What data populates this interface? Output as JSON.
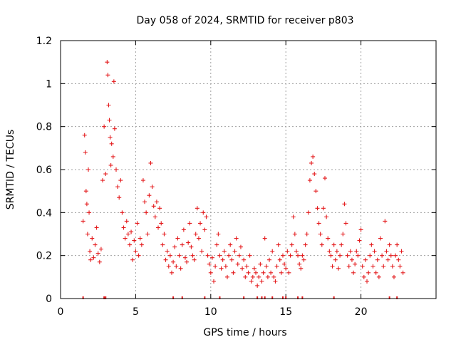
{
  "chart_data": {
    "type": "scatter",
    "title": "Day 058 of 2024, SRMTID for receiver p803",
    "xlabel": "GPS time / hours",
    "ylabel": "SRMTID / TECUs",
    "xlim": [
      0,
      25
    ],
    "ylim": [
      0,
      1.2
    ],
    "x_ticks": [
      0,
      5,
      10,
      15,
      20
    ],
    "y_ticks": [
      0,
      0.2,
      0.4,
      0.6,
      0.8,
      1,
      1.2
    ],
    "x_tick_labels": [
      "0",
      "5",
      "10",
      "15",
      "20"
    ],
    "y_tick_labels": [
      "0",
      "0.2",
      "0.4",
      "0.6",
      "0.8",
      "1",
      "1.2"
    ],
    "grid": true,
    "marker": "+",
    "color": "#e41a1c",
    "zero_marks_x": [
      1.5,
      2.9,
      3.0,
      7.5,
      8.1,
      9.6,
      10.6,
      12.2,
      13.1,
      13.4,
      13.6,
      14.1,
      14.8,
      15.0,
      15.8,
      16.1,
      18.2,
      21.9,
      22.4
    ],
    "series": [
      {
        "name": "SRMTID",
        "points": [
          [
            1.5,
            0.36
          ],
          [
            1.6,
            0.76
          ],
          [
            1.65,
            0.68
          ],
          [
            1.7,
            0.5
          ],
          [
            1.75,
            0.44
          ],
          [
            1.8,
            0.3
          ],
          [
            1.85,
            0.6
          ],
          [
            1.9,
            0.4
          ],
          [
            1.95,
            0.22
          ],
          [
            2.0,
            0.18
          ],
          [
            2.1,
            0.28
          ],
          [
            2.2,
            0.19
          ],
          [
            2.3,
            0.25
          ],
          [
            2.4,
            0.33
          ],
          [
            2.5,
            0.21
          ],
          [
            2.6,
            0.17
          ],
          [
            2.7,
            0.23
          ],
          [
            2.8,
            0.55
          ],
          [
            2.9,
            0.8
          ],
          [
            3.0,
            0.58
          ],
          [
            3.1,
            1.1
          ],
          [
            3.15,
            1.04
          ],
          [
            3.2,
            0.9
          ],
          [
            3.25,
            0.83
          ],
          [
            3.3,
            0.75
          ],
          [
            3.35,
            0.62
          ],
          [
            3.4,
            0.72
          ],
          [
            3.5,
            0.66
          ],
          [
            3.55,
            1.01
          ],
          [
            3.6,
            0.79
          ],
          [
            3.7,
            0.6
          ],
          [
            3.8,
            0.52
          ],
          [
            3.9,
            0.47
          ],
          [
            4.0,
            0.55
          ],
          [
            4.1,
            0.4
          ],
          [
            4.2,
            0.33
          ],
          [
            4.3,
            0.28
          ],
          [
            4.4,
            0.36
          ],
          [
            4.5,
            0.3
          ],
          [
            4.6,
            0.25
          ],
          [
            4.7,
            0.31
          ],
          [
            4.8,
            0.18
          ],
          [
            4.9,
            0.27
          ],
          [
            5.0,
            0.22
          ],
          [
            5.1,
            0.35
          ],
          [
            5.2,
            0.2
          ],
          [
            5.3,
            0.28
          ],
          [
            5.4,
            0.25
          ],
          [
            5.5,
            0.55
          ],
          [
            5.6,
            0.45
          ],
          [
            5.7,
            0.4
          ],
          [
            5.8,
            0.3
          ],
          [
            5.9,
            0.48
          ],
          [
            6.0,
            0.63
          ],
          [
            6.1,
            0.52
          ],
          [
            6.2,
            0.43
          ],
          [
            6.3,
            0.38
          ],
          [
            6.4,
            0.45
          ],
          [
            6.5,
            0.33
          ],
          [
            6.6,
            0.42
          ],
          [
            6.7,
            0.35
          ],
          [
            6.8,
            0.25
          ],
          [
            6.9,
            0.3
          ],
          [
            7.0,
            0.18
          ],
          [
            7.1,
            0.22
          ],
          [
            7.2,
            0.15
          ],
          [
            7.3,
            0.2
          ],
          [
            7.4,
            0.12
          ],
          [
            7.5,
            0.17
          ],
          [
            7.6,
            0.24
          ],
          [
            7.7,
            0.15
          ],
          [
            7.8,
            0.28
          ],
          [
            7.9,
            0.2
          ],
          [
            8.0,
            0.14
          ],
          [
            8.1,
            0.25
          ],
          [
            8.2,
            0.32
          ],
          [
            8.3,
            0.19
          ],
          [
            8.4,
            0.17
          ],
          [
            8.5,
            0.26
          ],
          [
            8.6,
            0.35
          ],
          [
            8.7,
            0.24
          ],
          [
            8.8,
            0.2
          ],
          [
            8.9,
            0.18
          ],
          [
            9.0,
            0.3
          ],
          [
            9.1,
            0.42
          ],
          [
            9.2,
            0.28
          ],
          [
            9.3,
            0.35
          ],
          [
            9.4,
            0.22
          ],
          [
            9.5,
            0.4
          ],
          [
            9.6,
            0.32
          ],
          [
            9.7,
            0.38
          ],
          [
            9.8,
            0.2
          ],
          [
            9.9,
            0.16
          ],
          [
            10.0,
            0.12
          ],
          [
            10.1,
            0.19
          ],
          [
            10.2,
            0.08
          ],
          [
            10.3,
            0.15
          ],
          [
            10.4,
            0.25
          ],
          [
            10.5,
            0.3
          ],
          [
            10.6,
            0.2
          ],
          [
            10.7,
            0.14
          ],
          [
            10.8,
            0.18
          ],
          [
            10.9,
            0.22
          ],
          [
            11.0,
            0.15
          ],
          [
            11.1,
            0.1
          ],
          [
            11.2,
            0.2
          ],
          [
            11.3,
            0.25
          ],
          [
            11.4,
            0.18
          ],
          [
            11.5,
            0.12
          ],
          [
            11.6,
            0.22
          ],
          [
            11.7,
            0.28
          ],
          [
            11.8,
            0.16
          ],
          [
            11.9,
            0.2
          ],
          [
            12.0,
            0.24
          ],
          [
            12.1,
            0.14
          ],
          [
            12.2,
            0.18
          ],
          [
            12.3,
            0.1
          ],
          [
            12.4,
            0.15
          ],
          [
            12.5,
            0.12
          ],
          [
            12.6,
            0.2
          ],
          [
            12.7,
            0.08
          ],
          [
            12.8,
            0.1
          ],
          [
            12.9,
            0.14
          ],
          [
            13.0,
            0.12
          ],
          [
            13.1,
            0.06
          ],
          [
            13.2,
            0.1
          ],
          [
            13.3,
            0.16
          ],
          [
            13.4,
            0.08
          ],
          [
            13.5,
            0.12
          ],
          [
            13.6,
            0.28
          ],
          [
            13.7,
            0.15
          ],
          [
            13.8,
            0.1
          ],
          [
            13.9,
            0.18
          ],
          [
            14.0,
            0.12
          ],
          [
            14.1,
            0.22
          ],
          [
            14.2,
            0.1
          ],
          [
            14.3,
            0.08
          ],
          [
            14.4,
            0.15
          ],
          [
            14.5,
            0.25
          ],
          [
            14.6,
            0.18
          ],
          [
            14.7,
            0.12
          ],
          [
            14.8,
            0.2
          ],
          [
            14.9,
            0.16
          ],
          [
            15.0,
            0.14
          ],
          [
            15.1,
            0.22
          ],
          [
            15.2,
            0.12
          ],
          [
            15.3,
            0.2
          ],
          [
            15.4,
            0.25
          ],
          [
            15.5,
            0.38
          ],
          [
            15.6,
            0.3
          ],
          [
            15.7,
            0.22
          ],
          [
            15.8,
            0.2
          ],
          [
            15.9,
            0.16
          ],
          [
            16.0,
            0.14
          ],
          [
            16.1,
            0.2
          ],
          [
            16.2,
            0.18
          ],
          [
            16.3,
            0.25
          ],
          [
            16.4,
            0.3
          ],
          [
            16.5,
            0.4
          ],
          [
            16.6,
            0.55
          ],
          [
            16.7,
            0.63
          ],
          [
            16.8,
            0.66
          ],
          [
            16.9,
            0.58
          ],
          [
            17.0,
            0.5
          ],
          [
            17.1,
            0.42
          ],
          [
            17.2,
            0.35
          ],
          [
            17.3,
            0.3
          ],
          [
            17.4,
            0.25
          ],
          [
            17.5,
            0.42
          ],
          [
            17.6,
            0.56
          ],
          [
            17.7,
            0.38
          ],
          [
            17.8,
            0.28
          ],
          [
            17.9,
            0.22
          ],
          [
            18.0,
            0.2
          ],
          [
            18.1,
            0.15
          ],
          [
            18.2,
            0.25
          ],
          [
            18.3,
            0.18
          ],
          [
            18.4,
            0.22
          ],
          [
            18.5,
            0.14
          ],
          [
            18.6,
            0.2
          ],
          [
            18.7,
            0.25
          ],
          [
            18.8,
            0.3
          ],
          [
            18.9,
            0.44
          ],
          [
            19.0,
            0.35
          ],
          [
            19.1,
            0.2
          ],
          [
            19.2,
            0.15
          ],
          [
            19.3,
            0.22
          ],
          [
            19.4,
            0.18
          ],
          [
            19.5,
            0.12
          ],
          [
            19.6,
            0.16
          ],
          [
            19.7,
            0.22
          ],
          [
            19.8,
            0.2
          ],
          [
            19.9,
            0.27
          ],
          [
            20.0,
            0.32
          ],
          [
            20.1,
            0.15
          ],
          [
            20.2,
            0.1
          ],
          [
            20.3,
            0.18
          ],
          [
            20.4,
            0.08
          ],
          [
            20.5,
            0.12
          ],
          [
            20.6,
            0.2
          ],
          [
            20.7,
            0.25
          ],
          [
            20.8,
            0.15
          ],
          [
            20.9,
            0.22
          ],
          [
            21.0,
            0.12
          ],
          [
            21.1,
            0.18
          ],
          [
            21.2,
            0.1
          ],
          [
            21.3,
            0.28
          ],
          [
            21.4,
            0.2
          ],
          [
            21.5,
            0.15
          ],
          [
            21.6,
            0.36
          ],
          [
            21.7,
            0.22
          ],
          [
            21.8,
            0.18
          ],
          [
            21.9,
            0.25
          ],
          [
            22.0,
            0.2
          ],
          [
            22.1,
            0.15
          ],
          [
            22.2,
            0.1
          ],
          [
            22.3,
            0.2
          ],
          [
            22.4,
            0.25
          ],
          [
            22.5,
            0.18
          ],
          [
            22.6,
            0.15
          ],
          [
            22.7,
            0.22
          ],
          [
            22.8,
            0.12
          ]
        ]
      }
    ]
  }
}
